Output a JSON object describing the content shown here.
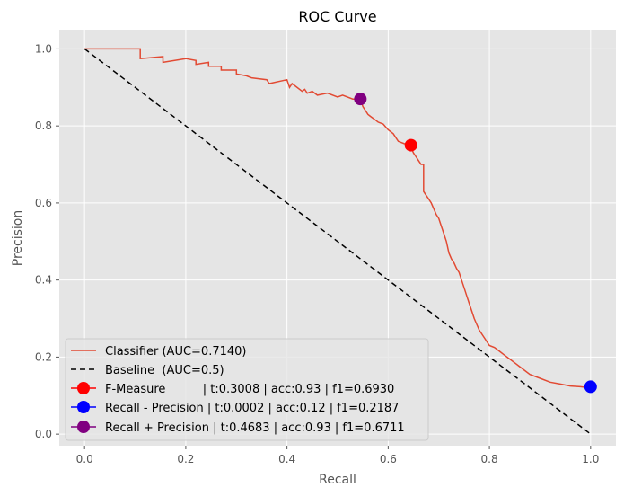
{
  "chart_data": {
    "type": "line",
    "title": "ROC Curve",
    "xlabel": "Recall",
    "ylabel": "Precision",
    "xlim": [
      -0.05,
      1.05
    ],
    "ylim": [
      -0.03,
      1.05
    ],
    "xticks": [
      0.0,
      0.2,
      0.4,
      0.6,
      0.8,
      1.0
    ],
    "yticks": [
      0.0,
      0.2,
      0.4,
      0.6,
      0.8,
      1.0
    ],
    "xtick_labels": [
      "0.0",
      "0.2",
      "0.4",
      "0.6",
      "0.8",
      "1.0"
    ],
    "ytick_labels": [
      "0.0",
      "0.2",
      "0.4",
      "0.6",
      "0.8",
      "1.0"
    ],
    "grid": true,
    "legend_position": "lower-left",
    "series": [
      {
        "name": "Classifier (AUC=0.7140)",
        "color": "#e24a33",
        "style": "solid-step",
        "x": [
          0.0,
          0.11,
          0.11,
          0.155,
          0.155,
          0.2,
          0.22,
          0.22,
          0.245,
          0.245,
          0.27,
          0.27,
          0.3,
          0.3,
          0.32,
          0.33,
          0.36,
          0.365,
          0.4,
          0.405,
          0.41,
          0.43,
          0.435,
          0.44,
          0.45,
          0.46,
          0.48,
          0.5,
          0.51,
          0.53,
          0.545,
          0.55,
          0.555,
          0.56,
          0.565,
          0.57,
          0.575,
          0.58,
          0.59,
          0.6,
          0.61,
          0.62,
          0.63,
          0.64,
          0.645,
          0.65,
          0.655,
          0.66,
          0.665,
          0.67,
          0.67,
          0.675,
          0.68,
          0.685,
          0.69,
          0.695,
          0.7,
          0.705,
          0.71,
          0.715,
          0.72,
          0.725,
          0.73,
          0.735,
          0.74,
          0.745,
          0.75,
          0.755,
          0.76,
          0.765,
          0.77,
          0.775,
          0.78,
          0.79,
          0.8,
          0.81,
          0.82,
          0.83,
          0.84,
          0.85,
          0.86,
          0.87,
          0.88,
          0.9,
          0.92,
          0.94,
          0.96,
          0.98,
          1.0
        ],
        "y": [
          1.0,
          1.0,
          0.975,
          0.98,
          0.965,
          0.975,
          0.97,
          0.96,
          0.965,
          0.955,
          0.955,
          0.945,
          0.945,
          0.935,
          0.93,
          0.925,
          0.92,
          0.91,
          0.92,
          0.9,
          0.91,
          0.89,
          0.895,
          0.885,
          0.89,
          0.88,
          0.885,
          0.875,
          0.88,
          0.87,
          0.87,
          0.85,
          0.84,
          0.83,
          0.825,
          0.82,
          0.815,
          0.81,
          0.805,
          0.79,
          0.78,
          0.76,
          0.755,
          0.75,
          0.745,
          0.73,
          0.72,
          0.71,
          0.7,
          0.7,
          0.63,
          0.62,
          0.61,
          0.6,
          0.585,
          0.57,
          0.56,
          0.54,
          0.52,
          0.5,
          0.47,
          0.455,
          0.445,
          0.43,
          0.42,
          0.4,
          0.38,
          0.36,
          0.34,
          0.32,
          0.3,
          0.285,
          0.27,
          0.25,
          0.23,
          0.225,
          0.215,
          0.205,
          0.195,
          0.185,
          0.175,
          0.165,
          0.155,
          0.145,
          0.135,
          0.13,
          0.125,
          0.123,
          0.12
        ]
      },
      {
        "name": "Baseline  (AUC=0.5)",
        "color": "#000000",
        "style": "dashed",
        "x": [
          0.0,
          1.0
        ],
        "y": [
          1.0,
          0.0
        ]
      }
    ],
    "markers": [
      {
        "name": "F-Measure          | t:0.3008 | acc:0.93 | f1=0.6930",
        "color": "#ff0000",
        "x": 0.645,
        "y": 0.75
      },
      {
        "name": "Recall - Precision | t:0.0002 | acc:0.12 | f1=0.2187",
        "color": "#0000ff",
        "x": 1.0,
        "y": 0.123
      },
      {
        "name": "Recall + Precision | t:0.4683 | acc:0.93 | f1=0.6711",
        "color": "#800080",
        "x": 0.545,
        "y": 0.87
      }
    ]
  }
}
